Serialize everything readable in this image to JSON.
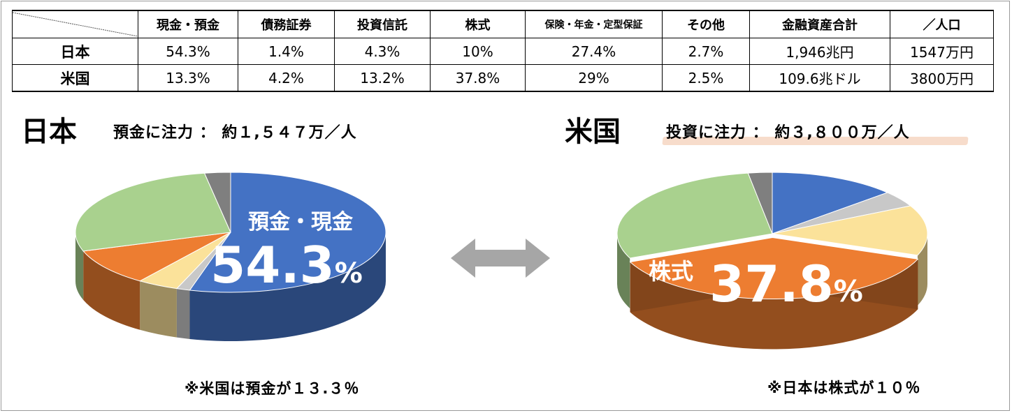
{
  "table": {
    "headers": [
      "現金・預金",
      "債務証券",
      "投資信託",
      "株式",
      "保険・年金・定型保証",
      "その他",
      "金融資産合計",
      "／人口"
    ],
    "rows": [
      {
        "label": "日本",
        "cells": [
          "54.3%",
          "1.4%",
          "4.3%",
          "10%",
          "27.4%",
          "2.7%",
          "1,946兆円",
          "1547万円"
        ]
      },
      {
        "label": "米国",
        "cells": [
          "13.3%",
          "4.2%",
          "13.2%",
          "37.8%",
          "29%",
          "2.5%",
          "109.6兆ドル",
          "3800万円"
        ]
      }
    ]
  },
  "japan": {
    "title": "日本",
    "subtitle": "預金に注力 ： 約１,５４７万／人",
    "callout_label": "預金・現金",
    "callout_value": "54.3",
    "callout_unit": "%",
    "note": "※米国は預金が１３.３％"
  },
  "usa": {
    "title": "米国",
    "subtitle": "投資に注力 ： 約３,８００万／人",
    "callout_label": "株式",
    "callout_value": "37.8",
    "callout_unit": "%",
    "note": "※日本は株式が１０％"
  },
  "colors": {
    "cash": "#4472c4",
    "bonds": "#c8c8c8",
    "funds": "#fbe29a",
    "stocks": "#ed7d31",
    "insurance": "#a9d18e",
    "other": "#7f7f7f",
    "arrow": "#a6a6a6",
    "highlight": "#f7dccb"
  },
  "chart_data": [
    {
      "type": "pie",
      "title": "日本",
      "categories": [
        "現金・預金",
        "債務証券",
        "投資信託",
        "株式",
        "保険・年金・定型保証",
        "その他"
      ],
      "values": [
        54.3,
        1.4,
        4.3,
        10,
        27.4,
        2.7
      ]
    },
    {
      "type": "pie",
      "title": "米国",
      "categories": [
        "現金・預金",
        "債務証券",
        "投資信託",
        "株式",
        "保険・年金・定型保証",
        "その他"
      ],
      "values": [
        13.3,
        4.2,
        13.2,
        37.8,
        29,
        2.5
      ]
    }
  ]
}
